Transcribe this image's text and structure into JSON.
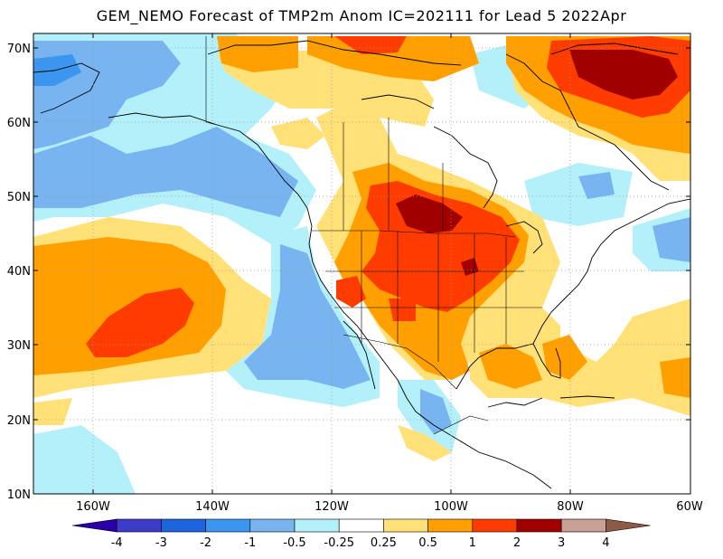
{
  "title": "GEM_NEMO Forecast of TMP2m Anom IC=202111 for Lead 5 2022Apr",
  "lat_labels": [
    "70N",
    "60N",
    "50N",
    "40N",
    "30N",
    "20N",
    "10N"
  ],
  "lon_labels": [
    "160W",
    "140W",
    "120W",
    "100W",
    "80W",
    "60W"
  ],
  "colorbar": {
    "colors": [
      "#2a00a8",
      "#3c3cc8",
      "#1e64dc",
      "#3c96f0",
      "#78b4f0",
      "#b4f0fa",
      "#ffffff",
      "#ffe178",
      "#ffa000",
      "#ff3c00",
      "#a00000",
      "#c8a096",
      "#8c5a46"
    ],
    "tick_labels": [
      "-4",
      "-3",
      "-2",
      "-1",
      "-0.5",
      "-0.25",
      "0.25",
      "0.5",
      "1",
      "2",
      "3",
      "4"
    ]
  }
}
